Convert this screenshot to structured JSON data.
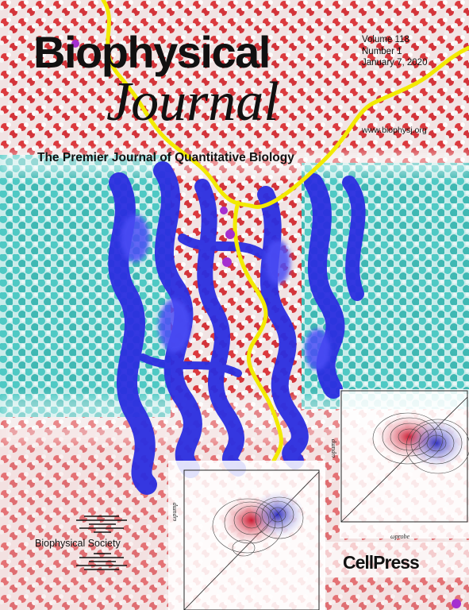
{
  "journal": {
    "title_line1": "Biophysical",
    "title_line2": "Journal",
    "tagline": "The Premier Journal of Quantitative Biology"
  },
  "issue": {
    "volume": "Volume 118",
    "number": "Number 1",
    "date": "January 7, 2020",
    "url": "www.biophysj.org"
  },
  "insets": [
    {
      "x_label": "ωprobe",
      "y_label": "ωpump"
    },
    {
      "x_label": "ωprobe",
      "y_label": "ωpump"
    }
  ],
  "publisher": {
    "society": "Biophysical Society",
    "press": "CellPress"
  },
  "colors": {
    "water": "#d8262b",
    "lipid": "#4fc9c4",
    "protein": "#2b2ee0",
    "path": "#f2ea00",
    "ion": "#a52fd0"
  }
}
